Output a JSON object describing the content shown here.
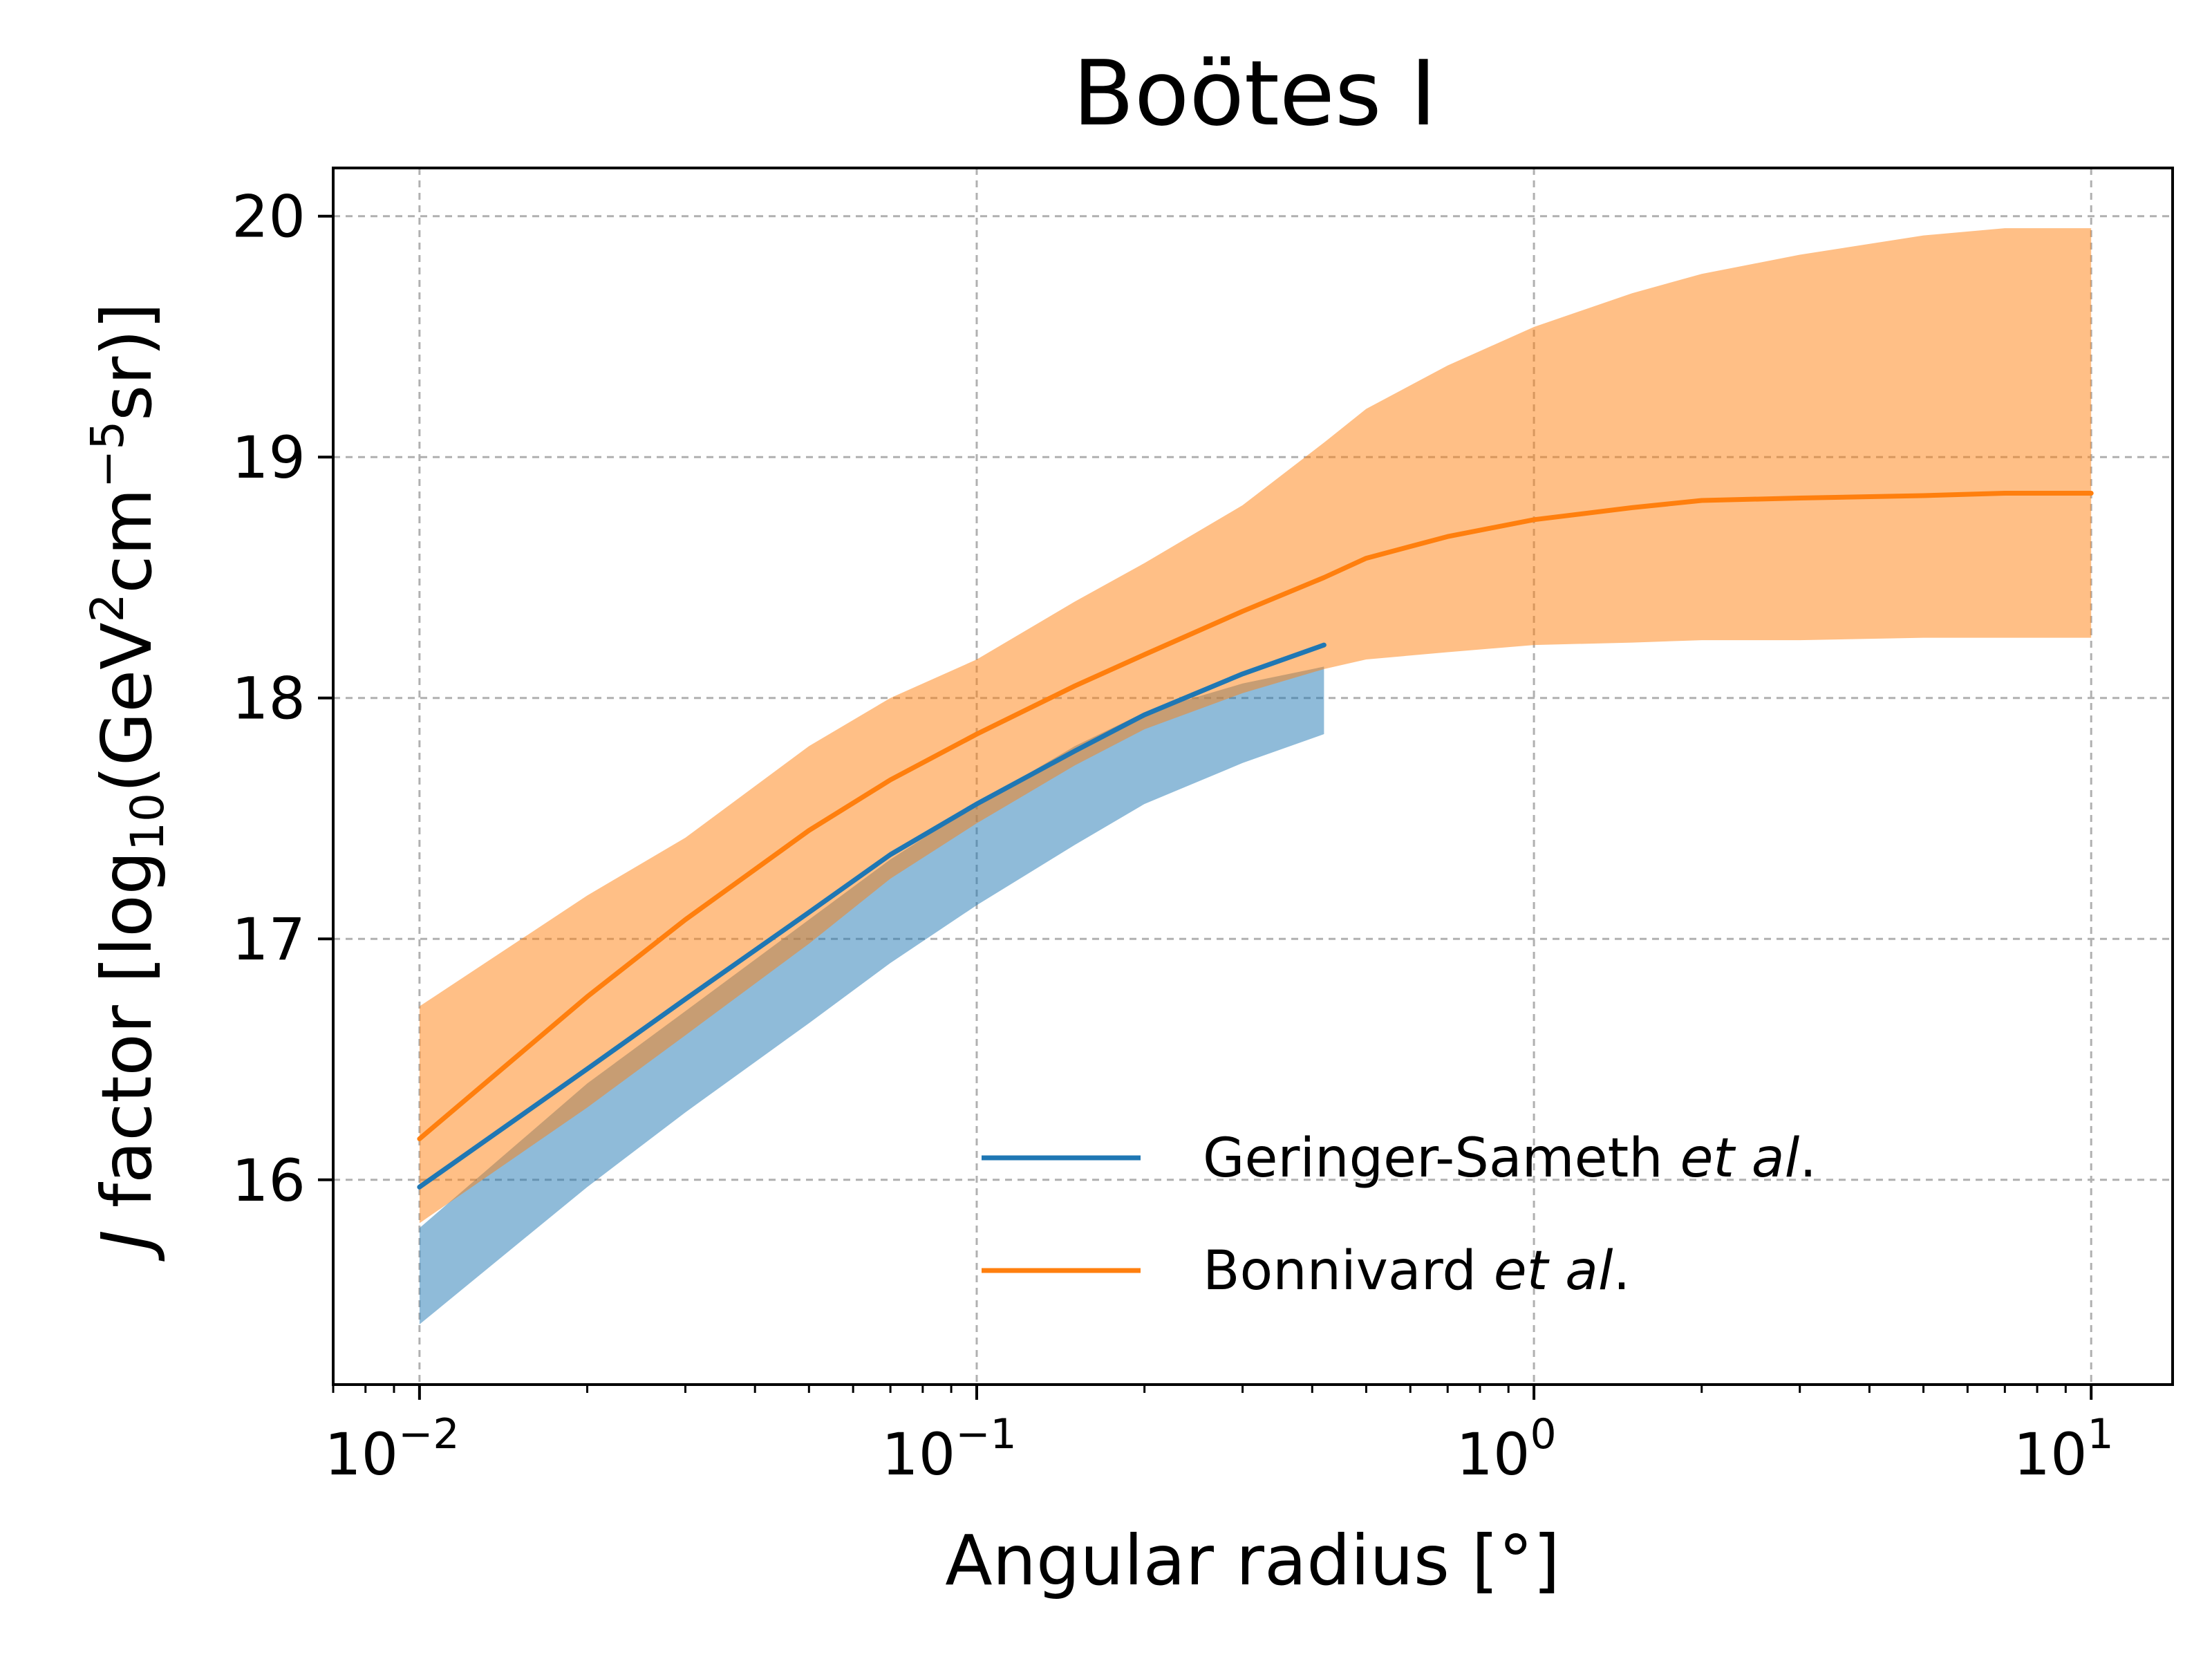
{
  "chart_data": {
    "type": "line",
    "title": "Boötes I",
    "xlabel": {
      "pre": "Angular radius [°]"
    },
    "ylabel": {
      "italic": "J",
      "pre": " factor [log",
      "sub": "10",
      "mid1": "(GeV",
      "sup1": "2",
      "mid2": "cm",
      "sup2": "−5",
      "post": "sr)]"
    },
    "xscale": "log",
    "xlim": [
      0.007,
      14
    ],
    "ylim": [
      15.15,
      20.2
    ],
    "grid": true,
    "legend_location": "lower-right",
    "x_ticks": [
      {
        "value": 0.01,
        "base": "10",
        "exp": "−2"
      },
      {
        "value": 0.1,
        "base": "10",
        "exp": "−1"
      },
      {
        "value": 1,
        "base": "10",
        "exp": "0"
      },
      {
        "value": 10,
        "base": "10",
        "exp": "1"
      }
    ],
    "y_ticks": [
      {
        "value": 16,
        "label": "16"
      },
      {
        "value": 17,
        "label": "17"
      },
      {
        "value": 18,
        "label": "18"
      },
      {
        "value": 19,
        "label": "19"
      },
      {
        "value": 20,
        "label": "20"
      }
    ],
    "series": [
      {
        "name": "Geringer-Sameth",
        "name_italic": "et al",
        "name_suffix": ".",
        "color": "#1f77b4",
        "band_color": "#1f77b4",
        "band_opacity": 0.5,
        "x": [
          0.01,
          0.02,
          0.03,
          0.05,
          0.07,
          0.1,
          0.15,
          0.2,
          0.3,
          0.42
        ],
        "y": [
          15.97,
          16.46,
          16.75,
          17.11,
          17.35,
          17.56,
          17.78,
          17.93,
          18.1,
          18.22
        ],
        "y_lower": [
          15.4,
          15.97,
          16.28,
          16.65,
          16.9,
          17.14,
          17.39,
          17.56,
          17.73,
          17.85
        ],
        "y_upper": [
          15.8,
          16.4,
          16.7,
          17.08,
          17.33,
          17.56,
          17.8,
          17.94,
          18.06,
          18.13
        ]
      },
      {
        "name": "Bonnivard",
        "name_italic": "et al",
        "name_suffix": ".",
        "color": "#ff7f0e",
        "band_color": "#ff7f0e",
        "band_opacity": 0.5,
        "x": [
          0.01,
          0.02,
          0.03,
          0.05,
          0.07,
          0.1,
          0.15,
          0.2,
          0.3,
          0.42,
          0.5,
          0.7,
          1,
          1.5,
          2,
          3,
          5,
          7,
          10
        ],
        "y": [
          16.17,
          16.76,
          17.08,
          17.45,
          17.66,
          17.85,
          18.05,
          18.18,
          18.36,
          18.5,
          18.58,
          18.67,
          18.74,
          18.79,
          18.82,
          18.83,
          18.84,
          18.85,
          18.85
        ],
        "y_lower": [
          15.82,
          16.3,
          16.6,
          16.98,
          17.25,
          17.48,
          17.72,
          17.87,
          18.02,
          18.12,
          18.16,
          18.19,
          18.22,
          18.23,
          18.24,
          18.24,
          18.25,
          18.25,
          18.25
        ],
        "y_upper": [
          16.72,
          17.18,
          17.42,
          17.8,
          18.0,
          18.16,
          18.4,
          18.56,
          18.8,
          19.06,
          19.2,
          19.38,
          19.54,
          19.68,
          19.76,
          19.84,
          19.92,
          19.95,
          19.95
        ]
      }
    ]
  }
}
